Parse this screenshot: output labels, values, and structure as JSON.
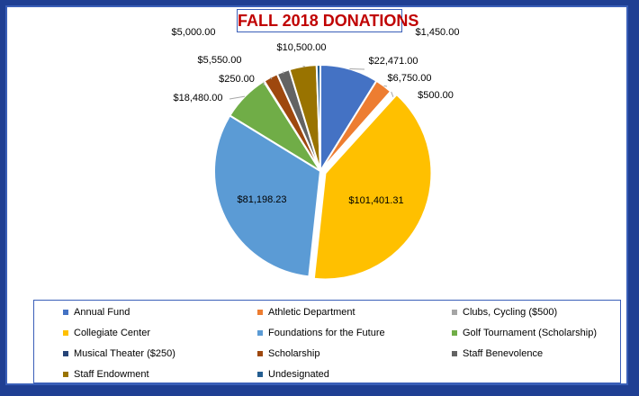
{
  "chart_data": {
    "type": "pie",
    "title": "FALL 2018 DONATIONS",
    "slices": [
      {
        "name": "Annual Fund",
        "value": 22471.0,
        "label": "$22,471.00",
        "color": "#4472c4"
      },
      {
        "name": "Athletic Department",
        "value": 6750.0,
        "label": "$6,750.00",
        "color": "#ed7d31"
      },
      {
        "name": "Clubs, Cycling ($500)",
        "value": 500.0,
        "label": "$500.00",
        "color": "#a5a5a5"
      },
      {
        "name": "Collegiate Center",
        "value": 101401.31,
        "label": "$101,401.31",
        "color": "#ffc000"
      },
      {
        "name": "Foundations for the Future",
        "value": 81198.23,
        "label": "$81,198.23",
        "color": "#5b9bd5"
      },
      {
        "name": "Golf Tournament (Scholarship)",
        "value": 18480.0,
        "label": "$18,480.00",
        "color": "#70ad47"
      },
      {
        "name": "Musical Theater ($250)",
        "value": 250.0,
        "label": "$250.00",
        "color": "#264478"
      },
      {
        "name": "Scholarship",
        "value": 5550.0,
        "label": "$5,550.00",
        "color": "#9e480e"
      },
      {
        "name": "Staff Benevolence",
        "value": 5000.0,
        "label": "$5,000.00",
        "color": "#636363"
      },
      {
        "name": "Staff Endowment",
        "value": 10500.0,
        "label": "$10,500.00",
        "color": "#997300"
      },
      {
        "name": "Undesignated",
        "value": 1450.0,
        "label": "$1,450.00",
        "color": "#255e91"
      }
    ],
    "legend_position": "bottom"
  }
}
